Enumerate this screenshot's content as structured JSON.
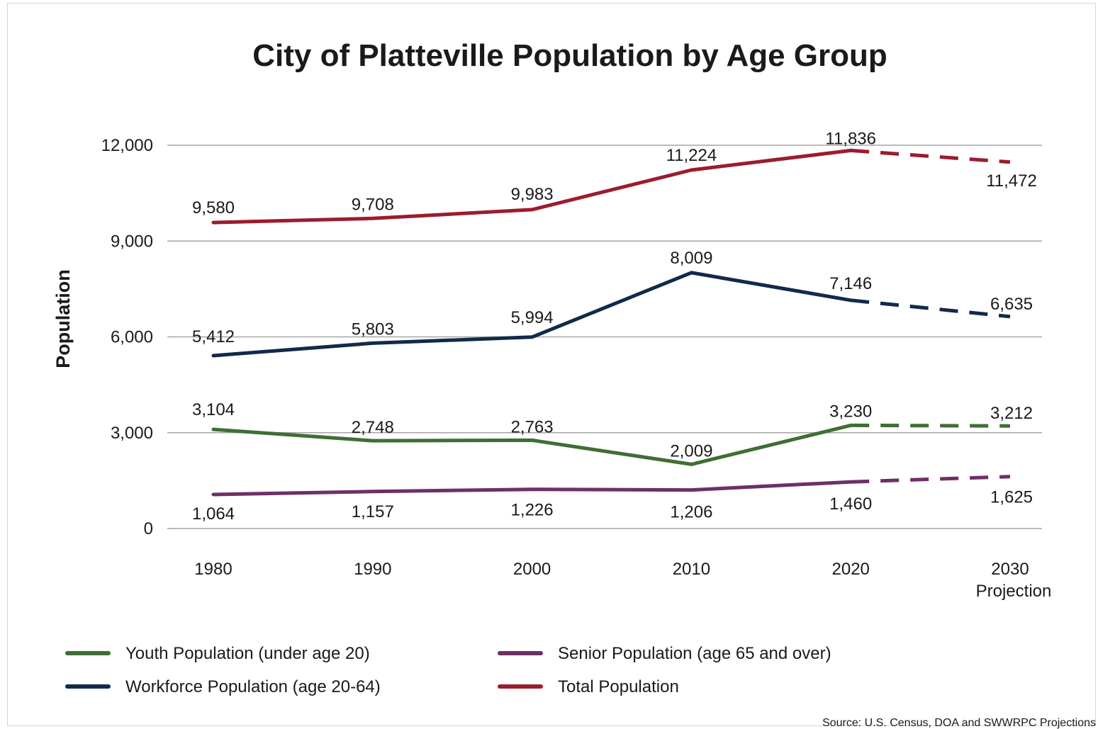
{
  "chart_data": {
    "type": "line",
    "title": "City of Platteville Population by Age Group",
    "ylabel": "Population",
    "xlabel": "",
    "ylim": [
      0,
      12000
    ],
    "yticks": [
      0,
      3000,
      6000,
      9000,
      12000
    ],
    "ytick_labels": [
      "0",
      "3,000",
      "6,000",
      "9,000",
      "12,000"
    ],
    "categories": [
      "1980",
      "1990",
      "2000",
      "2010",
      "2020",
      "2030"
    ],
    "category_sublabels": [
      "",
      "",
      "",
      "",
      "",
      "Projection"
    ],
    "projection_from_index": 4,
    "grid": true,
    "legend_position": "bottom",
    "series": [
      {
        "name": "Total Population",
        "color": "#9b1c2e",
        "values": [
          9580,
          9708,
          9983,
          11224,
          11836,
          11472
        ],
        "labels": [
          "9,580",
          "9,708",
          "9,983",
          "11,224",
          "11,836",
          "11,472"
        ]
      },
      {
        "name": "Workforce Population (age 20-64)",
        "color": "#13294b",
        "values": [
          5412,
          5803,
          5994,
          8009,
          7146,
          6635
        ],
        "labels": [
          "5,412",
          "5,803",
          "5,994",
          "8,009",
          "7,146",
          "6,635"
        ]
      },
      {
        "name": "Youth Population (under age 20)",
        "color": "#3f6e35",
        "values": [
          3104,
          2748,
          2763,
          2009,
          3230,
          3212
        ],
        "labels": [
          "3,104",
          "2,748",
          "2,763",
          "2,009",
          "3,230",
          "3,212"
        ]
      },
      {
        "name": "Senior Population (age 65 and over)",
        "color": "#6e2f67",
        "values": [
          1064,
          1157,
          1226,
          1206,
          1460,
          1625
        ],
        "labels": [
          "1,064",
          "1,157",
          "1,226",
          "1,206",
          "1,460",
          "1,625"
        ]
      }
    ],
    "legend_order": [
      "Youth Population (under age 20)",
      "Senior Population (age 65 and over)",
      "Workforce Population (age 20-64)",
      "Total Population"
    ],
    "source": "Source: U.S. Census, DOA and SWWRPC Projections"
  }
}
